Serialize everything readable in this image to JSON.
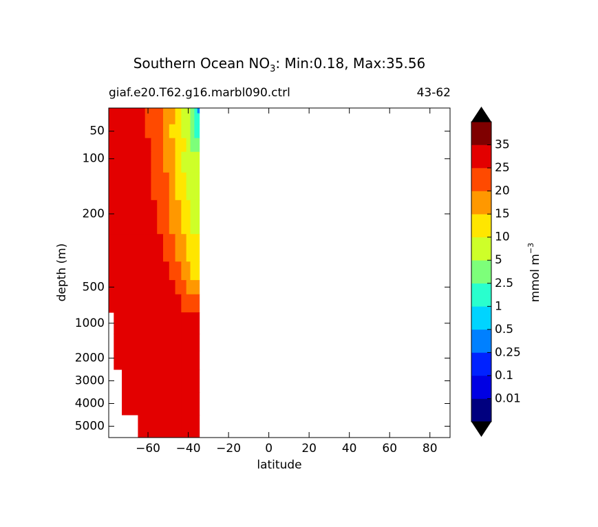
{
  "chart_data": {
    "type": "contourf",
    "title": "Southern Ocean NO",
    "title_sub": "3",
    "title_suffix": ": Min:0.18, Max:35.56",
    "subtitle_left": "giaf.e20.T62.g16.marbl090.ctrl",
    "subtitle_right": "43-62",
    "xlabel": "latitude",
    "ylabel": "depth (m)",
    "colorbar_label": "mmol m",
    "colorbar_label_sup": "−3",
    "x": [
      -79,
      -75,
      -71,
      -67,
      -63,
      -60,
      -57,
      -54,
      -51,
      -48,
      -45,
      -42,
      -40,
      -38,
      -36,
      -35
    ],
    "depths": [
      10,
      25,
      50,
      75,
      100,
      150,
      200,
      300,
      400,
      500,
      700,
      1000,
      1500,
      2000,
      3000,
      4000,
      5000
    ],
    "values": [
      [
        31,
        31,
        30,
        29,
        26,
        24,
        22,
        21,
        18,
        15,
        12,
        8,
        6,
        4,
        2,
        0.4
      ],
      [
        31,
        31,
        30,
        29,
        26,
        24,
        22,
        21,
        18,
        15,
        12,
        8,
        6,
        4,
        2,
        1.5
      ],
      [
        31,
        31,
        30,
        29,
        26,
        24,
        22,
        20,
        17,
        14,
        11,
        7,
        5,
        3.5,
        2,
        2
      ],
      [
        32,
        31,
        31,
        30,
        27,
        25,
        22,
        21,
        18,
        16,
        13,
        10,
        7,
        4,
        3,
        3
      ],
      [
        32,
        31,
        31,
        30,
        28,
        26,
        24,
        21,
        19,
        16,
        13,
        9,
        7,
        6,
        5,
        5
      ],
      [
        32,
        32,
        31,
        31,
        29,
        27,
        24,
        22,
        20,
        17,
        14,
        12,
        9,
        7,
        6,
        6
      ],
      [
        33,
        32,
        32,
        31,
        30,
        28,
        26,
        23,
        21,
        19,
        16,
        12,
        11,
        9,
        7,
        7
      ],
      [
        33,
        33,
        32,
        32,
        31,
        29,
        27,
        25,
        22,
        21,
        19,
        16,
        14,
        12,
        11,
        11
      ],
      [
        33,
        33,
        33,
        32,
        31,
        30,
        28,
        27,
        26,
        23,
        21,
        19,
        17,
        14,
        12,
        12
      ],
      [
        34,
        33,
        33,
        32,
        32,
        31,
        29,
        27,
        26,
        25,
        23,
        21,
        19,
        18,
        16,
        16
      ],
      [
        34,
        34,
        33,
        33,
        32,
        32,
        31,
        29,
        28,
        27,
        26,
        24,
        23,
        22,
        22,
        22
      ],
      [
        null,
        34,
        34,
        33,
        33,
        33,
        32,
        32,
        31,
        30,
        30,
        29,
        28,
        27,
        26,
        26
      ],
      [
        null,
        34,
        34,
        34,
        33,
        33,
        33,
        33,
        32,
        32,
        31,
        31,
        30,
        30,
        29,
        29
      ],
      [
        null,
        34,
        34,
        34,
        34,
        33,
        33,
        33,
        33,
        33,
        32,
        32,
        32,
        31,
        31,
        31
      ],
      [
        null,
        null,
        34,
        34,
        34,
        34,
        33,
        33,
        33,
        33,
        33,
        33,
        33,
        32,
        32,
        32
      ],
      [
        null,
        null,
        34,
        34,
        34,
        34,
        34,
        34,
        33,
        33,
        33,
        33,
        33,
        33,
        33,
        33
      ],
      [
        null,
        null,
        null,
        null,
        34,
        34,
        34,
        34,
        34,
        34,
        34,
        33,
        33,
        33,
        33,
        33
      ]
    ],
    "xlim": [
      -79.5,
      90
    ],
    "xticks": [
      {
        "value": -60,
        "label": "−60"
      },
      {
        "value": -40,
        "label": "−40"
      },
      {
        "value": -20,
        "label": "−20"
      },
      0,
      20,
      40,
      60,
      80
    ],
    "ylim": [
      8,
      5500
    ],
    "y_inverted": true,
    "yticks": [
      50,
      100,
      200,
      500,
      1000,
      2000,
      3000,
      4000,
      5000
    ],
    "levels": [
      0.01,
      0.1,
      0.25,
      0.5,
      1,
      2.5,
      5,
      10,
      15,
      20,
      25,
      35
    ],
    "colors": [
      "#00007f",
      "#0000e3",
      "#0022ff",
      "#0080ff",
      "#00d4ff",
      "#29ffce",
      "#7dff7a",
      "#ceff29",
      "#ffe600",
      "#ff9800",
      "#ff4a00",
      "#e30000",
      "#7f0000"
    ],
    "extend_color": "#000000"
  }
}
